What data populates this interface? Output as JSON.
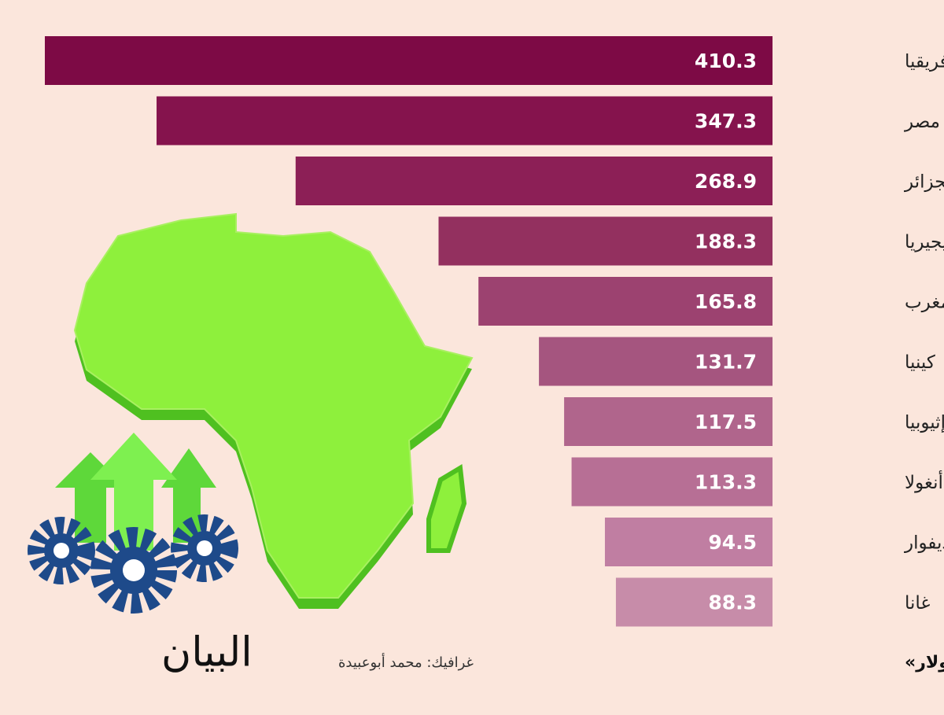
{
  "chart_data": {
    "type": "bar",
    "orientation": "horizontal",
    "categories": [
      "جنوب أفريقيا",
      "مصر",
      "الجزائر",
      "نيجيريا",
      "المغرب",
      "كينيا",
      "إثيوبيا",
      "أنغولا",
      "كوت ديفوار",
      "غانا"
    ],
    "values": [
      410.3,
      347.3,
      268.9,
      188.3,
      165.8,
      131.7,
      117.5,
      113.3,
      94.5,
      88.3
    ],
    "colors": [
      "#7d0a45",
      "#85134d",
      "#8c1f56",
      "#93305f",
      "#9c4270",
      "#a5557f",
      "#b0658c",
      "#b76f95",
      "#c07ea2",
      "#c78ca9"
    ],
    "note": "الأرقام: الناتج المحلي «مليار دولار»",
    "credit": "غرافيك: محمد أبوعبيدة",
    "logo": "البيان"
  }
}
